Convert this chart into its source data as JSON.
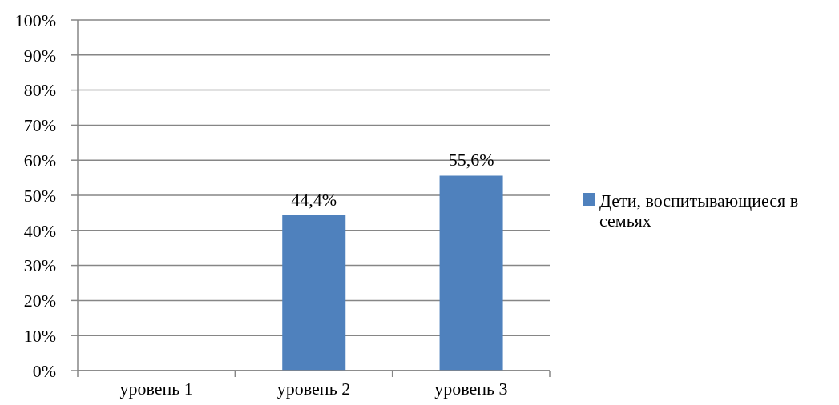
{
  "chart_data": {
    "type": "bar",
    "categories": [
      "уровень 1",
      "уровень 2",
      "уровень 3"
    ],
    "series": [
      {
        "name": "Дети, воспитывающиеся в семьях",
        "color": "#4f81bd",
        "values": [
          0,
          44.4,
          55.6
        ],
        "value_labels": [
          null,
          "44,4%",
          "55,6%"
        ]
      }
    ],
    "ylim": [
      0,
      100
    ],
    "yticks": [
      {
        "value": 0,
        "label": "0%"
      },
      {
        "value": 10,
        "label": "10%"
      },
      {
        "value": 20,
        "label": "20%"
      },
      {
        "value": 30,
        "label": "30%"
      },
      {
        "value": 40,
        "label": "40%"
      },
      {
        "value": 50,
        "label": "50%"
      },
      {
        "value": 60,
        "label": "60%"
      },
      {
        "value": 70,
        "label": "70%"
      },
      {
        "value": 80,
        "label": "80%"
      },
      {
        "value": 90,
        "label": "90%"
      },
      {
        "value": 100,
        "label": "100%"
      }
    ],
    "grid": "y",
    "legend": "right"
  }
}
